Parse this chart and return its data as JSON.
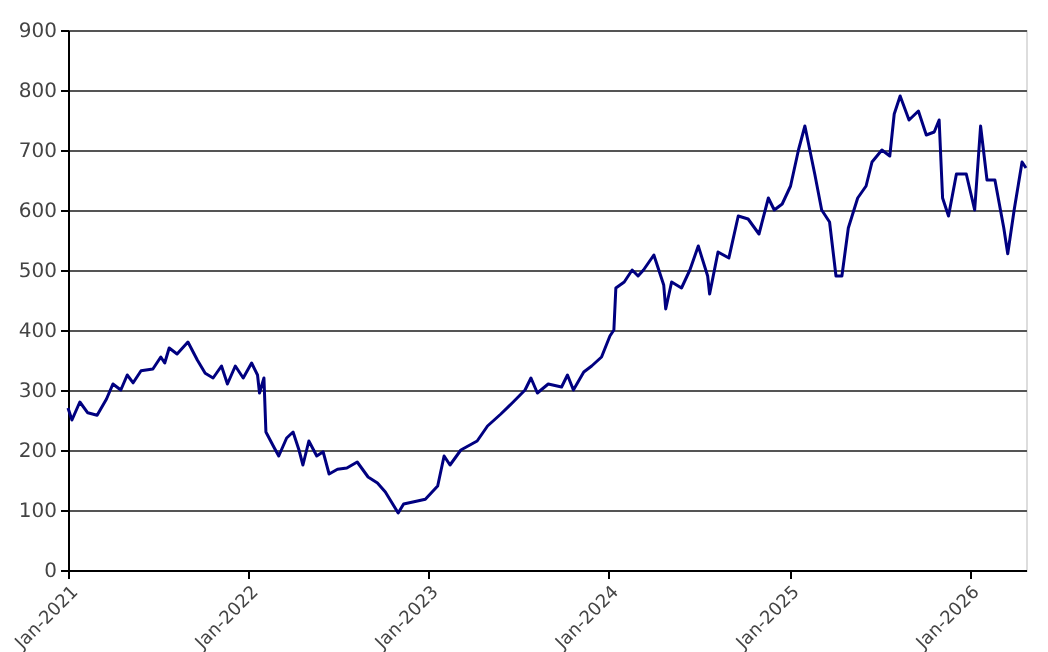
{
  "chart_data": {
    "type": "line",
    "x": [
      "2021-01-01",
      "2021-01-09",
      "2021-01-25",
      "2021-02-10",
      "2021-03-01",
      "2021-03-20",
      "2021-04-02",
      "2021-04-18",
      "2021-05-01",
      "2021-05-13",
      "2021-05-29",
      "2021-06-22",
      "2021-07-08",
      "2021-07-16",
      "2021-07-25",
      "2021-08-10",
      "2021-09-01",
      "2021-09-20",
      "2021-10-06",
      "2021-10-22",
      "2021-11-08",
      "2021-11-20",
      "2021-12-06",
      "2021-12-22",
      "2022-01-08",
      "2022-01-20",
      "2022-01-24",
      "2022-02-02",
      "2022-02-06",
      "2022-02-22",
      "2022-03-04",
      "2022-03-20",
      "2022-04-02",
      "2022-04-14",
      "2022-04-22",
      "2022-05-04",
      "2022-05-20",
      "2022-06-02",
      "2022-06-14",
      "2022-07-01",
      "2022-07-20",
      "2022-08-10",
      "2022-09-01",
      "2022-09-20",
      "2022-10-06",
      "2022-11-01",
      "2022-11-12",
      "2022-12-10",
      "2022-12-26",
      "2023-01-20",
      "2023-02-02",
      "2023-02-14",
      "2023-03-08",
      "2023-04-10",
      "2023-05-01",
      "2023-05-28",
      "2023-06-22",
      "2023-07-16",
      "2023-07-28",
      "2023-08-10",
      "2023-09-01",
      "2023-09-28",
      "2023-10-10",
      "2023-10-22",
      "2023-11-12",
      "2023-11-28",
      "2023-12-18",
      "2024-01-04",
      "2024-01-12",
      "2024-01-16",
      "2024-02-02",
      "2024-02-18",
      "2024-03-01",
      "2024-03-12",
      "2024-04-02",
      "2024-04-22",
      "2024-04-26",
      "2024-05-08",
      "2024-05-28",
      "2024-06-14",
      "2024-07-01",
      "2024-07-20",
      "2024-07-24",
      "2024-08-10",
      "2024-09-01",
      "2024-09-20",
      "2024-10-10",
      "2024-11-01",
      "2024-11-20",
      "2024-12-02",
      "2024-12-18",
      "2025-01-04",
      "2025-01-20",
      "2025-02-02",
      "2025-02-22",
      "2025-03-08",
      "2025-03-24",
      "2025-04-06",
      "2025-04-18",
      "2025-05-01",
      "2025-05-20",
      "2025-06-06",
      "2025-06-18",
      "2025-07-08",
      "2025-07-24",
      "2025-08-02",
      "2025-08-14",
      "2025-09-01",
      "2025-09-20",
      "2025-10-06",
      "2025-10-22",
      "2025-11-01",
      "2025-11-08",
      "2025-11-20",
      "2025-12-06",
      "2025-12-26",
      "2026-01-12",
      "2026-01-24",
      "2026-02-06",
      "2026-02-22",
      "2026-03-12",
      "2026-03-20",
      "2026-04-02",
      "2026-04-18",
      "2026-04-26"
    ],
    "series": [
      {
        "color": "#000080",
        "values": [
          270,
          250,
          280,
          262,
          258,
          285,
          310,
          300,
          325,
          312,
          332,
          335,
          355,
          345,
          370,
          360,
          380,
          350,
          328,
          320,
          340,
          310,
          340,
          320,
          345,
          325,
          295,
          320,
          230,
          205,
          190,
          220,
          230,
          200,
          175,
          215,
          190,
          197,
          160,
          168,
          170,
          180,
          155,
          145,
          130,
          95,
          110,
          115,
          118,
          140,
          190,
          175,
          200,
          215,
          240,
          260,
          280,
          300,
          320,
          295,
          310,
          305,
          325,
          300,
          330,
          340,
          355,
          390,
          400,
          470,
          480,
          500,
          490,
          500,
          525,
          475,
          435,
          480,
          470,
          500,
          540,
          490,
          460,
          530,
          520,
          590,
          585,
          560,
          620,
          600,
          610,
          640,
          700,
          740,
          660,
          600,
          580,
          490,
          490,
          570,
          620,
          640,
          680,
          700,
          690,
          760,
          790,
          750,
          765,
          725,
          730,
          750,
          620,
          590,
          660,
          660,
          600,
          740,
          650,
          650,
          570,
          527,
          600,
          680,
          670
        ]
      }
    ],
    "xlim": [
      "2021-01-01",
      "2026-04-26"
    ],
    "xticks": [
      {
        "value": "2021-01-01",
        "label": "Jan-2021"
      },
      {
        "value": "2022-01-01",
        "label": "Jan-2022"
      },
      {
        "value": "2023-01-01",
        "label": "Jan-2023"
      },
      {
        "value": "2024-01-01",
        "label": "Jan-2024"
      },
      {
        "value": "2025-01-01",
        "label": "Jan-2025"
      },
      {
        "value": "2026-01-01",
        "label": "Jan-2026"
      }
    ],
    "ylim": [
      0,
      900
    ],
    "yticks": [
      0,
      100,
      200,
      300,
      400,
      500,
      600,
      700,
      800,
      900
    ],
    "grid": "y",
    "legend": false,
    "marker": "none",
    "line_style": "solid"
  }
}
